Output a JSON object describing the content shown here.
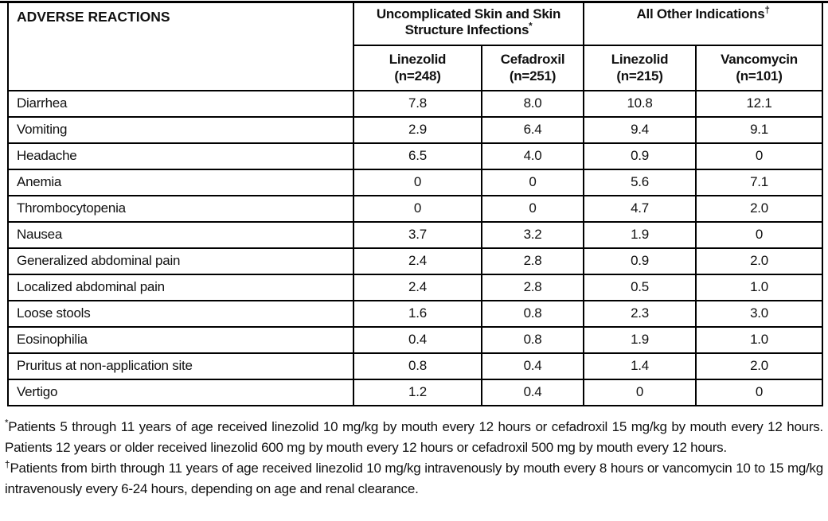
{
  "document": {
    "table": {
      "corner_header": "ADVERSE REACTIONS",
      "groups": [
        {
          "label": "Uncomplicated Skin and Skin Structure Infections",
          "marker": "*"
        },
        {
          "label": "All Other Indications",
          "marker": "†"
        }
      ],
      "columns": [
        {
          "drug": "Linezolid",
          "n": "(n=248)"
        },
        {
          "drug": "Cefadroxil",
          "n": "(n=251)"
        },
        {
          "drug": "Linezolid",
          "n": "(n=215)"
        },
        {
          "drug": "Vancomycin",
          "n": "(n=101)"
        }
      ],
      "rows": [
        {
          "label": "Diarrhea",
          "values": [
            "7.8",
            "8.0",
            "10.8",
            "12.1"
          ]
        },
        {
          "label": "Vomiting",
          "values": [
            "2.9",
            "6.4",
            "9.4",
            "9.1"
          ]
        },
        {
          "label": "Headache",
          "values": [
            "6.5",
            "4.0",
            "0.9",
            "0"
          ]
        },
        {
          "label": "Anemia",
          "values": [
            "0",
            "0",
            "5.6",
            "7.1"
          ]
        },
        {
          "label": "Thrombocytopenia",
          "values": [
            "0",
            "0",
            "4.7",
            "2.0"
          ]
        },
        {
          "label": "Nausea",
          "values": [
            "3.7",
            "3.2",
            "1.9",
            "0"
          ]
        },
        {
          "label": "Generalized abdominal pain",
          "values": [
            "2.4",
            "2.8",
            "0.9",
            "2.0"
          ]
        },
        {
          "label": "Localized abdominal pain",
          "values": [
            "2.4",
            "2.8",
            "0.5",
            "1.0"
          ]
        },
        {
          "label": "Loose stools",
          "values": [
            "1.6",
            "0.8",
            "2.3",
            "3.0"
          ]
        },
        {
          "label": "Eosinophilia",
          "values": [
            "0.4",
            "0.8",
            "1.9",
            "1.0"
          ]
        },
        {
          "label": "Pruritus at non-application site",
          "values": [
            "0.8",
            "0.4",
            "1.4",
            "2.0"
          ]
        },
        {
          "label": "Vertigo",
          "values": [
            "1.2",
            "0.4",
            "0",
            "0"
          ]
        }
      ]
    },
    "footnotes": [
      {
        "marker": "*",
        "text": "Patients 5 through 11 years of age received linezolid 10 mg/kg by mouth every 12 hours or cefadroxil 15 mg/kg by mouth every 12 hours. Patients 12 years or older received linezolid 600 mg by mouth every 12 hours or cefadroxil 500 mg by mouth every 12 hours."
      },
      {
        "marker": "†",
        "text": "Patients from birth through 11 years of age received linezolid 10 mg/kg intravenously by mouth every 8 hours or vancomycin 10 to 15 mg/kg intravenously every 6-24 hours, depending on age and renal clearance."
      }
    ]
  }
}
